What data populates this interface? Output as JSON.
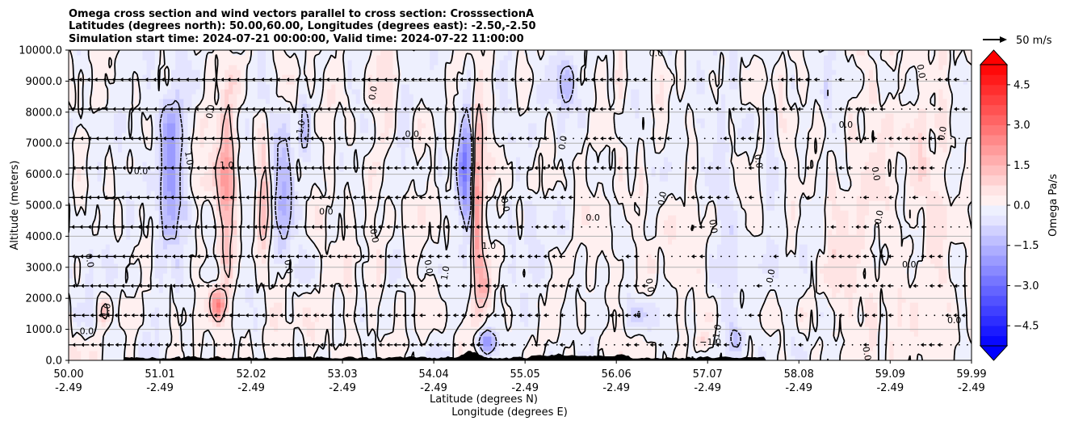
{
  "chart_data": {
    "type": "contour",
    "title_lines": [
      "Omega cross section and wind vectors parallel to cross section: CrosssectionA",
      "Latitudes (degrees north): 50.00,60.00, Longitudes (degrees east): -2.50,-2.50",
      "Simulation start time: 2024-07-21 00:00:00, Valid time: 2024-07-22 11:00:00"
    ],
    "ylabel": "Altitude (meters)",
    "xlabel_lat": "Latitude (degrees N)",
    "xlabel_lon": "Longitude (degrees E)",
    "ylim": [
      0,
      10000
    ],
    "y_ticks": [
      {
        "value": 0,
        "label": "0.0"
      },
      {
        "value": 1000,
        "label": "1000.0"
      },
      {
        "value": 2000,
        "label": "2000.0"
      },
      {
        "value": 3000,
        "label": "3000.0"
      },
      {
        "value": 4000,
        "label": "4000.0"
      },
      {
        "value": 5000,
        "label": "5000.0"
      },
      {
        "value": 6000,
        "label": "6000.0"
      },
      {
        "value": 7000,
        "label": "7000.0"
      },
      {
        "value": 8000,
        "label": "8000.0"
      },
      {
        "value": 9000,
        "label": "9000.0"
      },
      {
        "value": 10000,
        "label": "10000.0"
      }
    ],
    "xlim": [
      50.0,
      59.99
    ],
    "x_ticks": [
      {
        "value": 50.0,
        "lat": "50.00",
        "lon": "-2.49"
      },
      {
        "value": 51.01,
        "lat": "51.01",
        "lon": "-2.49"
      },
      {
        "value": 52.02,
        "lat": "52.02",
        "lon": "-2.49"
      },
      {
        "value": 53.03,
        "lat": "53.03",
        "lon": "-2.49"
      },
      {
        "value": 54.04,
        "lat": "54.04",
        "lon": "-2.49"
      },
      {
        "value": 55.05,
        "lat": "55.05",
        "lon": "-2.49"
      },
      {
        "value": 56.06,
        "lat": "56.06",
        "lon": "-2.49"
      },
      {
        "value": 57.07,
        "lat": "57.07",
        "lon": "-2.49"
      },
      {
        "value": 58.08,
        "lat": "58.08",
        "lon": "-2.49"
      },
      {
        "value": 59.09,
        "lat": "59.09",
        "lon": "-2.49"
      },
      {
        "value": 59.99,
        "lat": "59.99",
        "lon": "-2.49"
      }
    ],
    "grid": true,
    "colorbar": {
      "label": "Omega Pa/s",
      "range": [
        -5.25,
        5.25
      ],
      "step": 0.375,
      "ticks": [
        {
          "value": 4.5,
          "label": "4.5"
        },
        {
          "value": 3.0,
          "label": "3.0"
        },
        {
          "value": 1.5,
          "label": "1.5"
        },
        {
          "value": 0.0,
          "label": "0.0"
        },
        {
          "value": -1.5,
          "label": "−1.5"
        },
        {
          "value": -3.0,
          "label": "−3.0"
        },
        {
          "value": -4.5,
          "label": "−4.5"
        }
      ]
    },
    "vector_key": {
      "label": "50 m/s",
      "speed": 50
    },
    "contour_levels": [
      -1.0,
      0.0,
      1.0
    ],
    "contour_labels": [
      {
        "text": "0.0",
        "x": 50.2,
        "y": 850
      },
      {
        "text": "0.0",
        "x": 50.2,
        "y": 3200
      },
      {
        "text": "1.0",
        "x": 50.45,
        "y": 1600
      },
      {
        "text": "0.0",
        "x": 50.8,
        "y": 6000
      },
      {
        "text": "1.0",
        "x": 51.3,
        "y": 6500
      },
      {
        "text": "0.0",
        "x": 51.6,
        "y": 8000
      },
      {
        "text": "1.0",
        "x": 51.75,
        "y": 6200
      },
      {
        "text": "0.0",
        "x": 52.4,
        "y": 3000
      },
      {
        "text": "1.0",
        "x": 52.6,
        "y": 7500
      },
      {
        "text": "0.0",
        "x": 52.85,
        "y": 4700
      },
      {
        "text": "0.0",
        "x": 53.35,
        "y": 4000
      },
      {
        "text": "0.0",
        "x": 53.4,
        "y": 8600
      },
      {
        "text": "0.0",
        "x": 53.8,
        "y": 7200
      },
      {
        "text": "0.0",
        "x": 53.95,
        "y": 3000
      },
      {
        "text": "1.0",
        "x": 54.2,
        "y": 2800
      },
      {
        "text": "1.0",
        "x": 54.65,
        "y": 3600
      },
      {
        "text": "0.0",
        "x": 54.8,
        "y": 5000
      },
      {
        "text": "0.0",
        "x": 55.5,
        "y": 7000
      },
      {
        "text": "0.0",
        "x": 55.8,
        "y": 4500
      },
      {
        "text": "0.0",
        "x": 56.4,
        "y": 2400
      },
      {
        "text": "0.0",
        "x": 56.6,
        "y": 5200
      },
      {
        "text": "0.0",
        "x": 56.5,
        "y": 9800
      },
      {
        "text": "0.0",
        "x": 57.1,
        "y": 4300
      },
      {
        "text": "−1.0",
        "x": 57.2,
        "y": 800
      },
      {
        "text": "−1.0",
        "x": 57.1,
        "y": 500
      },
      {
        "text": "0.0",
        "x": 57.6,
        "y": 6400
      },
      {
        "text": "0.0",
        "x": 57.8,
        "y": 2700
      },
      {
        "text": "0.0",
        "x": 58.6,
        "y": 7500
      },
      {
        "text": "0.0",
        "x": 58.9,
        "y": 6000
      },
      {
        "text": "0.0",
        "x": 59.0,
        "y": 4600
      },
      {
        "text": "0.0",
        "x": 59.3,
        "y": 3000
      },
      {
        "text": "0.0",
        "x": 59.4,
        "y": 9300
      },
      {
        "text": "0.0",
        "x": 59.7,
        "y": 7300
      },
      {
        "text": "0.0",
        "x": 59.8,
        "y": 1200
      },
      {
        "text": "0.0",
        "x": 58.8,
        "y": 200
      }
    ],
    "omega_features": [
      {
        "x": 51.15,
        "y": 6000,
        "w": 0.14,
        "h": 4800,
        "amp": -2.2
      },
      {
        "x": 51.75,
        "y": 5500,
        "w": 0.1,
        "h": 5200,
        "amp": 2.3
      },
      {
        "x": 51.65,
        "y": 1800,
        "w": 0.08,
        "h": 900,
        "amp": 2.8
      },
      {
        "x": 50.4,
        "y": 1600,
        "w": 0.06,
        "h": 800,
        "amp": 1.5
      },
      {
        "x": 52.35,
        "y": 5500,
        "w": 0.1,
        "h": 3800,
        "amp": -2.0
      },
      {
        "x": 52.15,
        "y": 5200,
        "w": 0.07,
        "h": 4200,
        "amp": 1.4
      },
      {
        "x": 52.6,
        "y": 7600,
        "w": 0.06,
        "h": 2200,
        "amp": -1.6
      },
      {
        "x": 53.1,
        "y": 2800,
        "w": 0.06,
        "h": 1500,
        "amp": 1.0
      },
      {
        "x": 54.4,
        "y": 6200,
        "w": 0.09,
        "h": 3000,
        "amp": -3.4
      },
      {
        "x": 54.52,
        "y": 5000,
        "w": 0.06,
        "h": 5200,
        "amp": 3.2
      },
      {
        "x": 54.6,
        "y": 2400,
        "w": 0.05,
        "h": 1400,
        "amp": 1.6
      },
      {
        "x": 54.62,
        "y": 600,
        "w": 0.1,
        "h": 700,
        "amp": -2.6
      },
      {
        "x": 53.7,
        "y": 7800,
        "w": 0.07,
        "h": 2800,
        "amp": -1.0
      },
      {
        "x": 55.5,
        "y": 9000,
        "w": 0.1,
        "h": 1500,
        "amp": -1.2
      },
      {
        "x": 56.3,
        "y": 1500,
        "w": 0.1,
        "h": 800,
        "amp": -0.9
      },
      {
        "x": 57.0,
        "y": 600,
        "w": 0.06,
        "h": 500,
        "amp": 1.1
      },
      {
        "x": 57.4,
        "y": 700,
        "w": 0.06,
        "h": 700,
        "amp": -1.3
      },
      {
        "x": 58.4,
        "y": 9000,
        "w": 0.06,
        "h": 2000,
        "amp": -1.2
      },
      {
        "x": 55.2,
        "y": 5500,
        "w": 0.35,
        "h": 9000,
        "amp": -0.3
      },
      {
        "x": 57.5,
        "y": 6000,
        "w": 0.6,
        "h": 9000,
        "amp": -0.25
      },
      {
        "x": 58.8,
        "y": 5000,
        "w": 0.6,
        "h": 10000,
        "amp": 0.25
      },
      {
        "x": 59.6,
        "y": 5000,
        "w": 0.3,
        "h": 10000,
        "amp": 0.3
      },
      {
        "x": 50.6,
        "y": 5000,
        "w": 0.3,
        "h": 10000,
        "amp": -0.3
      }
    ]
  }
}
